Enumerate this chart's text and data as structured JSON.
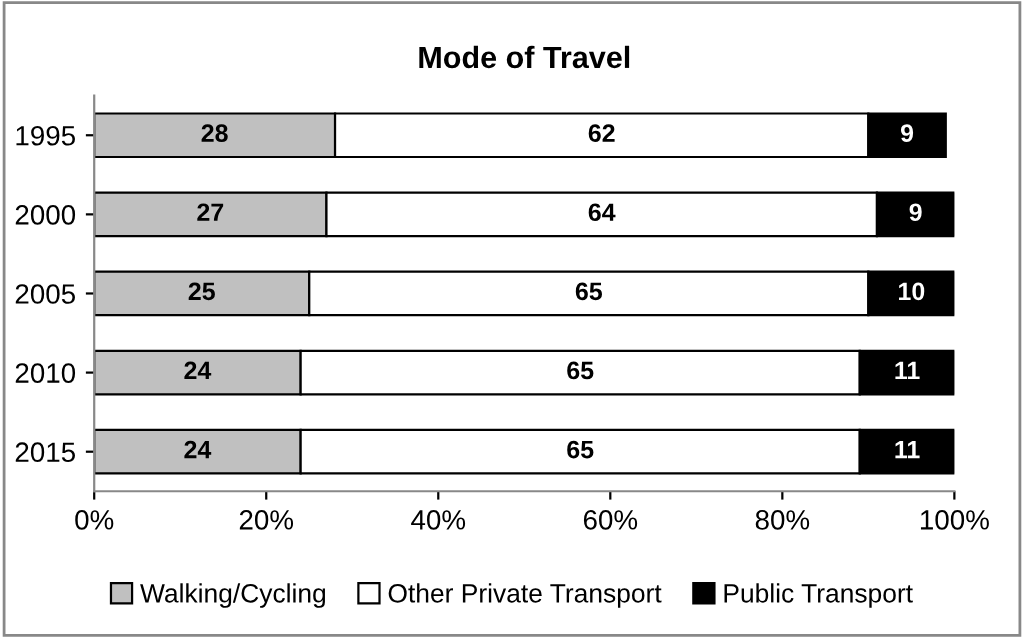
{
  "chart_data": {
    "type": "bar",
    "orientation": "horizontal",
    "stacked": true,
    "title": "Mode of Travel",
    "categories": [
      "1995",
      "2000",
      "2005",
      "2010",
      "2015"
    ],
    "series": [
      {
        "name": "Walking/Cycling",
        "color": "#c0c0c0",
        "values": [
          28,
          27,
          25,
          24,
          24
        ]
      },
      {
        "name": "Other Private Transport",
        "color": "#ffffff",
        "values": [
          62,
          64,
          65,
          65,
          65
        ]
      },
      {
        "name": "Public Transport",
        "color": "#000000",
        "values": [
          9,
          9,
          10,
          11,
          11
        ]
      }
    ],
    "xlim": [
      0,
      100
    ],
    "xticks": [
      {
        "value": 0,
        "label": "0%"
      },
      {
        "value": 20,
        "label": "20%"
      },
      {
        "value": 40,
        "label": "40%"
      },
      {
        "value": 60,
        "label": "60%"
      },
      {
        "value": 80,
        "label": "80%"
      },
      {
        "value": 100,
        "label": "100%"
      }
    ],
    "data_labels": true,
    "grid": false,
    "legend": "bottom"
  }
}
